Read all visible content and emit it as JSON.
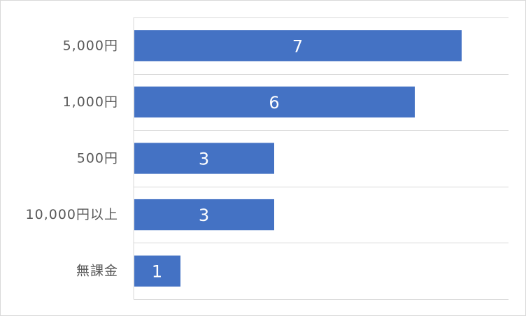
{
  "chart_data": {
    "type": "bar",
    "orientation": "horizontal",
    "title": "",
    "xlabel": "",
    "ylabel": "",
    "categories": [
      "5,000円",
      "1,000円",
      "500円",
      "10,000円以上",
      "無課金"
    ],
    "values": [
      7,
      6,
      3,
      3,
      1
    ],
    "xlim": [
      0,
      8
    ],
    "data_labels": true,
    "grid": "horizontal-separators",
    "legend": "none",
    "bar_color": "#4472c4",
    "grid_color": "#d9d9d9",
    "label_color": "#595959"
  }
}
